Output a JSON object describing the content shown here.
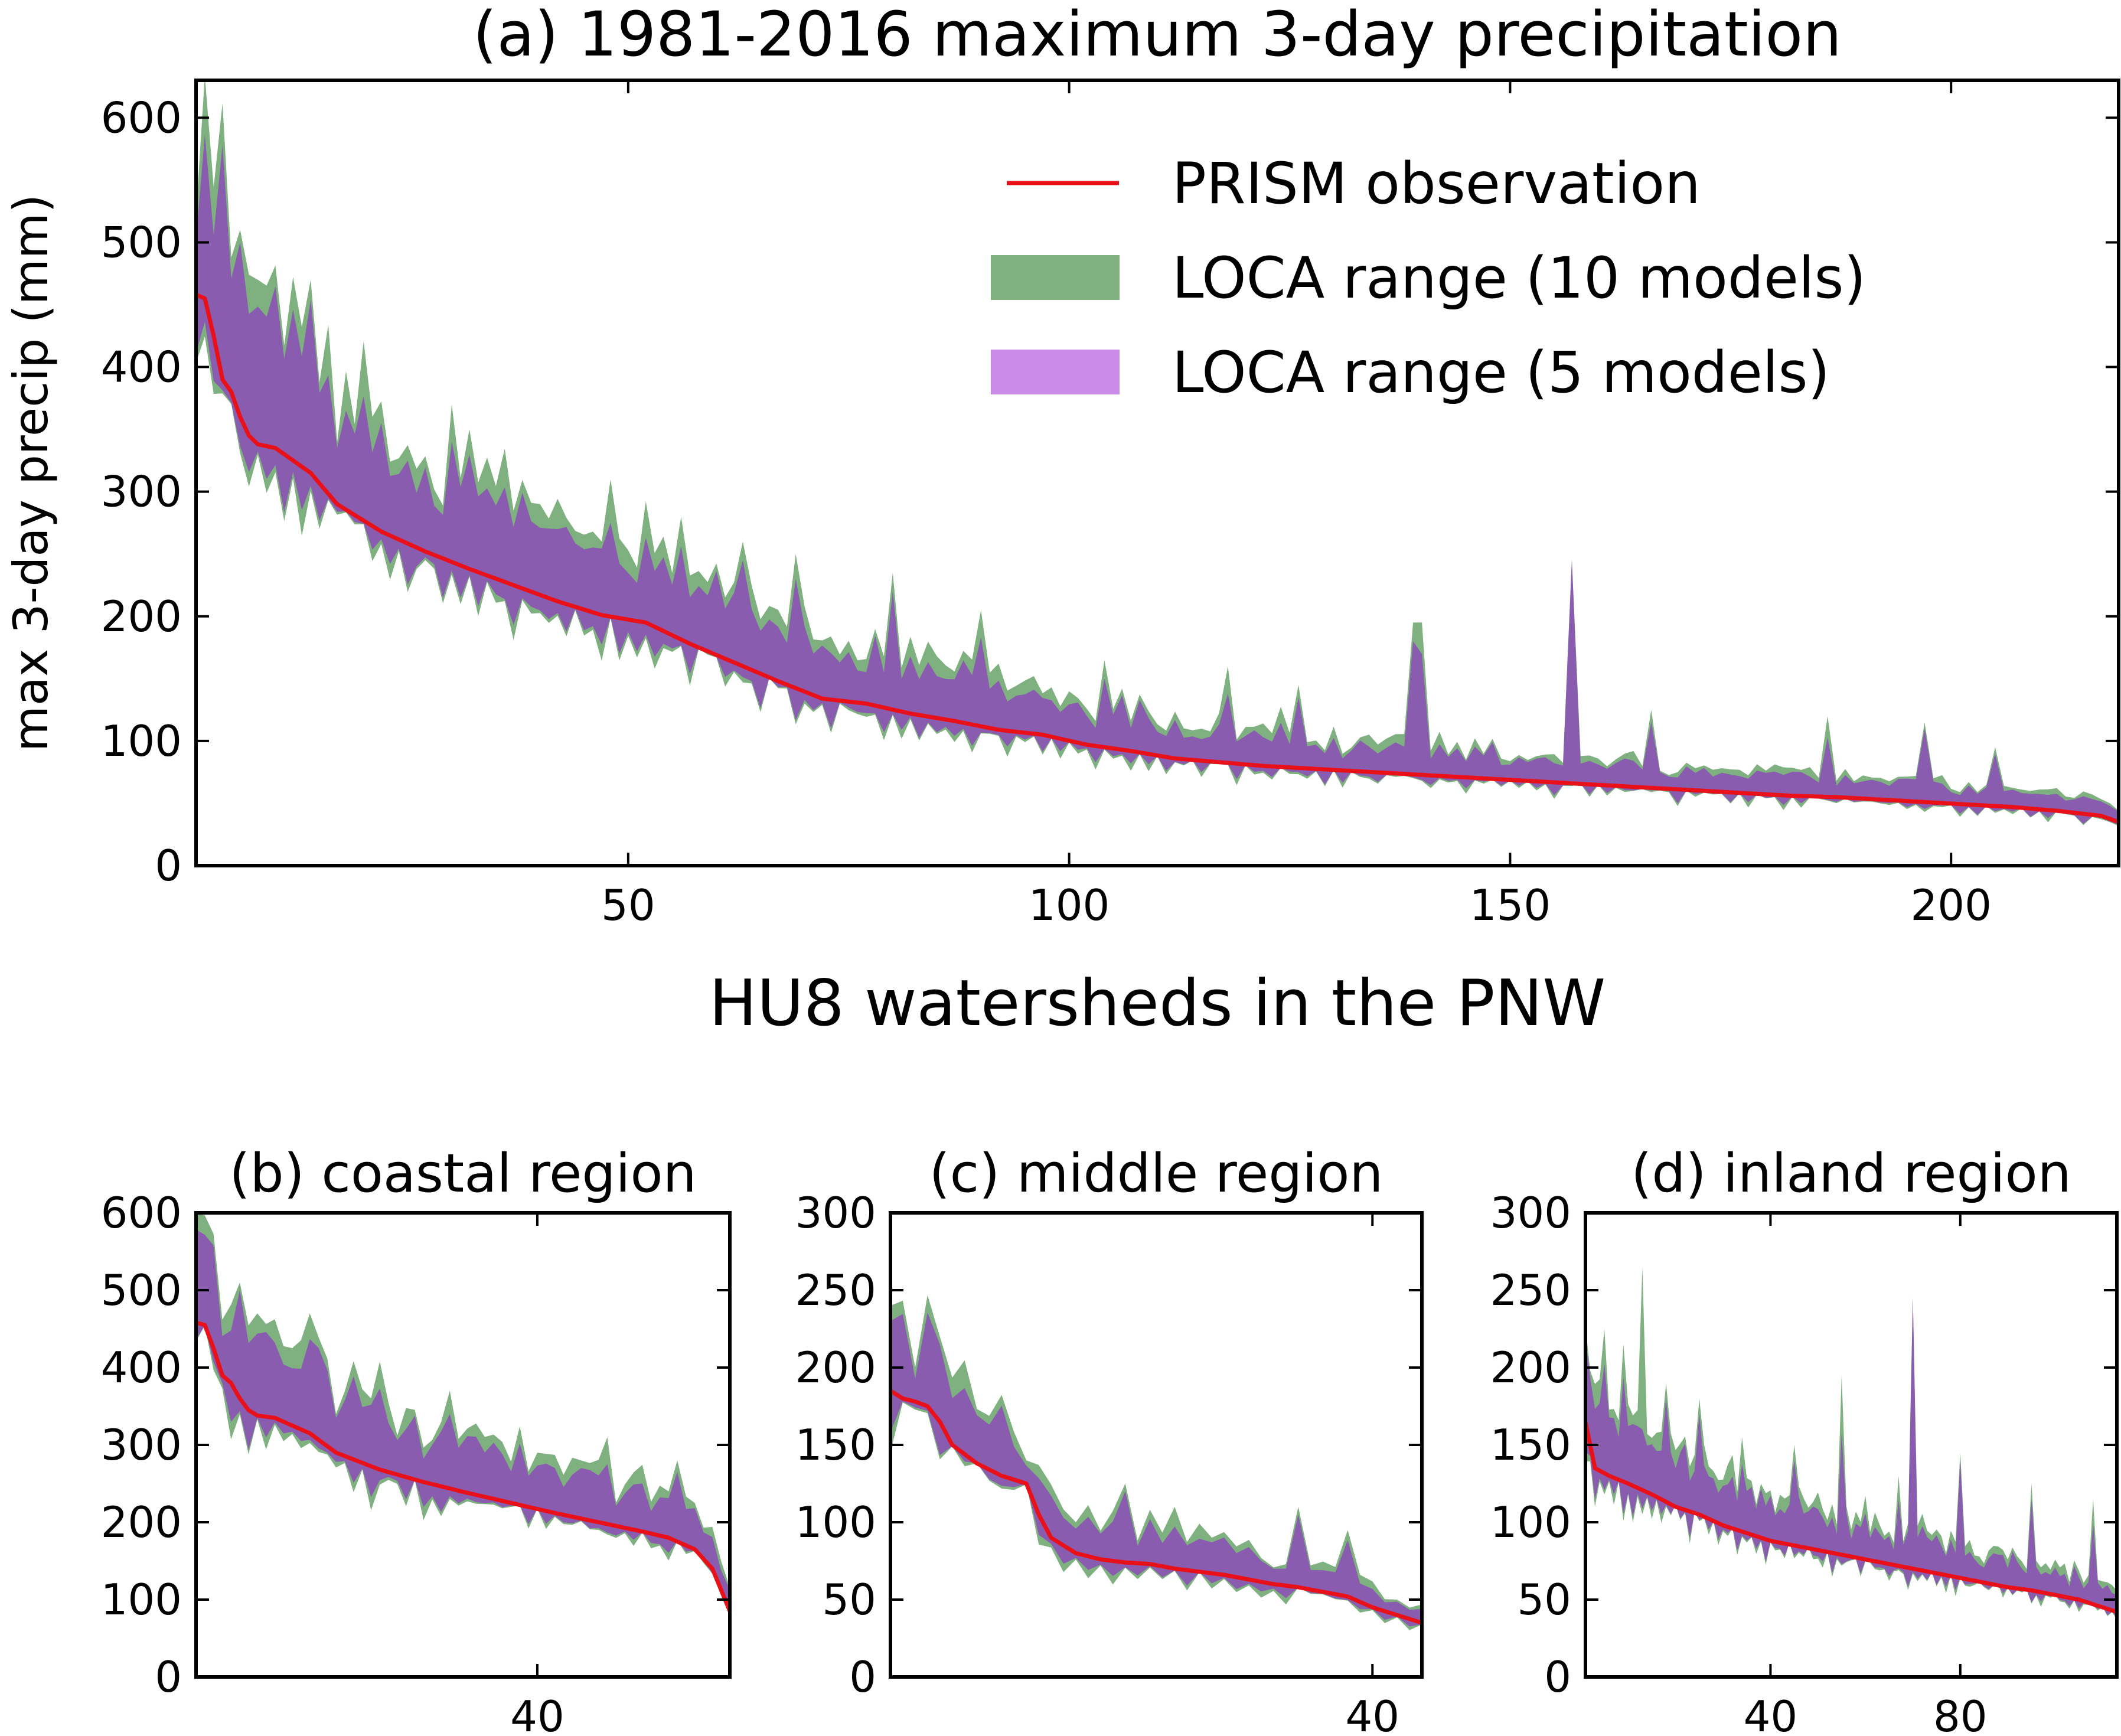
{
  "colors": {
    "observation": "#e8111a",
    "range10": "#7fb07f",
    "range5": "#8a5cb0",
    "range5_legend": "#c98ae8",
    "frame": "#000000"
  },
  "chart_data": [
    {
      "id": "a",
      "type": "area",
      "title": "(a) 1981-2016 maximum 3-day precipitation",
      "xlabel": "HU8 watersheds in the PNW",
      "ylabel": "max 3-day precip (mm)",
      "xlim": [
        1,
        219
      ],
      "ylim": [
        0,
        630
      ],
      "xticks": [
        50,
        100,
        150,
        200
      ],
      "yticks": [
        0,
        100,
        200,
        300,
        400,
        500,
        600
      ],
      "legend_position": "upper-right",
      "legend": [
        {
          "label": "PRISM observation",
          "kind": "line",
          "color": "#e8111a"
        },
        {
          "label": "LOCA range (10 models)",
          "kind": "patch",
          "color": "#7fb07f"
        },
        {
          "label": "LOCA range (5 models)",
          "kind": "patch",
          "color": "#c98ae8"
        }
      ],
      "obs_knots": [
        [
          1,
          458
        ],
        [
          2,
          455
        ],
        [
          3,
          425
        ],
        [
          4,
          390
        ],
        [
          5,
          380
        ],
        [
          6,
          360
        ],
        [
          7,
          345
        ],
        [
          8,
          338
        ],
        [
          10,
          335
        ],
        [
          12,
          325
        ],
        [
          14,
          315
        ],
        [
          17,
          290
        ],
        [
          22,
          268
        ],
        [
          27,
          252
        ],
        [
          32,
          238
        ],
        [
          37,
          225
        ],
        [
          42,
          212
        ],
        [
          47,
          201
        ],
        [
          52,
          195
        ],
        [
          57,
          178
        ],
        [
          62,
          163
        ],
        [
          67,
          148
        ],
        [
          72,
          134
        ],
        [
          77,
          130
        ],
        [
          82,
          122
        ],
        [
          87,
          116
        ],
        [
          92,
          109
        ],
        [
          97,
          105
        ],
        [
          102,
          97
        ],
        [
          107,
          92
        ],
        [
          112,
          86
        ],
        [
          117,
          83
        ],
        [
          122,
          80
        ],
        [
          127,
          78
        ],
        [
          132,
          76
        ],
        [
          137,
          74
        ],
        [
          142,
          72
        ],
        [
          147,
          70
        ],
        [
          152,
          68
        ],
        [
          157,
          66
        ],
        [
          162,
          64
        ],
        [
          167,
          62
        ],
        [
          172,
          60
        ],
        [
          177,
          58
        ],
        [
          182,
          56
        ],
        [
          187,
          55
        ],
        [
          192,
          53
        ],
        [
          197,
          51
        ],
        [
          202,
          49
        ],
        [
          207,
          47
        ],
        [
          212,
          44
        ],
        [
          217,
          40
        ],
        [
          219,
          35
        ]
      ],
      "band10_spikes": [
        [
          6,
          510
        ],
        [
          8,
          470
        ],
        [
          14,
          470
        ],
        [
          17,
          340
        ],
        [
          21,
          360
        ],
        [
          30,
          370
        ],
        [
          40,
          290
        ],
        [
          48,
          310
        ],
        [
          56,
          280
        ],
        [
          63,
          260
        ],
        [
          69,
          250
        ],
        [
          80,
          235
        ],
        [
          90,
          205
        ],
        [
          104,
          165
        ],
        [
          118,
          160
        ],
        [
          126,
          145
        ],
        [
          139,
          195
        ],
        [
          140,
          195
        ],
        [
          157,
          245
        ],
        [
          166,
          125
        ],
        [
          186,
          120
        ],
        [
          197,
          115
        ],
        [
          205,
          95
        ]
      ],
      "band5_spikes": [
        [
          6,
          500
        ],
        [
          17,
          335
        ],
        [
          30,
          340
        ],
        [
          48,
          275
        ],
        [
          63,
          245
        ],
        [
          69,
          230
        ],
        [
          80,
          220
        ],
        [
          104,
          150
        ],
        [
          139,
          180
        ],
        [
          157,
          245
        ],
        [
          166,
          115
        ],
        [
          197,
          110
        ]
      ]
    },
    {
      "id": "b",
      "type": "area",
      "title": "(b) coastal region",
      "xlim": [
        1,
        62
      ],
      "ylim": [
        0,
        600
      ],
      "xticks": [
        40
      ],
      "yticks": [
        0,
        100,
        200,
        300,
        400,
        500,
        600
      ],
      "obs_knots": [
        [
          1,
          458
        ],
        [
          2,
          455
        ],
        [
          3,
          425
        ],
        [
          4,
          390
        ],
        [
          5,
          380
        ],
        [
          6,
          360
        ],
        [
          7,
          345
        ],
        [
          8,
          338
        ],
        [
          10,
          335
        ],
        [
          12,
          325
        ],
        [
          14,
          315
        ],
        [
          17,
          290
        ],
        [
          22,
          268
        ],
        [
          27,
          252
        ],
        [
          32,
          238
        ],
        [
          37,
          225
        ],
        [
          42,
          212
        ],
        [
          47,
          200
        ],
        [
          52,
          188
        ],
        [
          55,
          180
        ],
        [
          58,
          165
        ],
        [
          60,
          140
        ],
        [
          62,
          85
        ]
      ],
      "band10_spikes": [
        [
          6,
          510
        ],
        [
          8,
          470
        ],
        [
          14,
          470
        ],
        [
          17,
          340
        ],
        [
          21,
          360
        ],
        [
          30,
          370
        ],
        [
          40,
          290
        ],
        [
          48,
          310
        ],
        [
          56,
          280
        ],
        [
          61,
          150
        ]
      ],
      "band5_spikes": [
        [
          6,
          500
        ],
        [
          17,
          335
        ],
        [
          30,
          340
        ],
        [
          48,
          275
        ],
        [
          56,
          265
        ]
      ]
    },
    {
      "id": "c",
      "type": "area",
      "title": "(c) middle region",
      "xlim": [
        1,
        44
      ],
      "ylim": [
        0,
        300
      ],
      "xticks": [
        40
      ],
      "yticks": [
        0,
        50,
        100,
        150,
        200,
        250,
        300
      ],
      "obs_knots": [
        [
          1,
          185
        ],
        [
          2,
          180
        ],
        [
          3,
          178
        ],
        [
          4,
          175
        ],
        [
          5,
          165
        ],
        [
          6,
          150
        ],
        [
          8,
          138
        ],
        [
          10,
          130
        ],
        [
          12,
          125
        ],
        [
          13,
          105
        ],
        [
          14,
          90
        ],
        [
          16,
          80
        ],
        [
          18,
          76
        ],
        [
          20,
          74
        ],
        [
          22,
          73
        ],
        [
          24,
          70
        ],
        [
          26,
          68
        ],
        [
          28,
          66
        ],
        [
          30,
          63
        ],
        [
          32,
          60
        ],
        [
          34,
          58
        ],
        [
          36,
          55
        ],
        [
          38,
          52
        ],
        [
          40,
          45
        ],
        [
          42,
          40
        ],
        [
          44,
          35
        ]
      ],
      "band10_spikes": [
        [
          1,
          240
        ],
        [
          3,
          200
        ],
        [
          5,
          220
        ],
        [
          12,
          140
        ],
        [
          16,
          100
        ],
        [
          20,
          125
        ],
        [
          24,
          110
        ],
        [
          34,
          110
        ],
        [
          38,
          95
        ],
        [
          42,
          50
        ]
      ],
      "band5_spikes": [
        [
          1,
          230
        ],
        [
          5,
          215
        ],
        [
          20,
          120
        ],
        [
          34,
          105
        ]
      ]
    },
    {
      "id": "d",
      "type": "area",
      "title": "(d) inland region",
      "xlim": [
        1,
        113
      ],
      "ylim": [
        0,
        300
      ],
      "xticks": [
        40,
        80
      ],
      "yticks": [
        0,
        50,
        100,
        150,
        200,
        250,
        300
      ],
      "obs_knots": [
        [
          1,
          165
        ],
        [
          3,
          135
        ],
        [
          6,
          130
        ],
        [
          10,
          125
        ],
        [
          15,
          118
        ],
        [
          20,
          110
        ],
        [
          25,
          105
        ],
        [
          30,
          98
        ],
        [
          35,
          93
        ],
        [
          40,
          88
        ],
        [
          45,
          85
        ],
        [
          50,
          82
        ],
        [
          55,
          79
        ],
        [
          60,
          76
        ],
        [
          65,
          73
        ],
        [
          70,
          70
        ],
        [
          75,
          67
        ],
        [
          80,
          64
        ],
        [
          85,
          61
        ],
        [
          90,
          58
        ],
        [
          95,
          56
        ],
        [
          100,
          53
        ],
        [
          105,
          50
        ],
        [
          110,
          45
        ],
        [
          113,
          42
        ]
      ],
      "band10_spikes": [
        [
          5,
          225
        ],
        [
          9,
          215
        ],
        [
          13,
          265
        ],
        [
          18,
          190
        ],
        [
          25,
          180
        ],
        [
          34,
          155
        ],
        [
          45,
          150
        ],
        [
          55,
          195
        ],
        [
          67,
          130
        ],
        [
          70,
          245
        ],
        [
          80,
          145
        ],
        [
          95,
          125
        ],
        [
          108,
          115
        ]
      ],
      "band5_spikes": [
        [
          13,
          160
        ],
        [
          18,
          180
        ],
        [
          25,
          170
        ],
        [
          45,
          140
        ],
        [
          70,
          245
        ],
        [
          80,
          140
        ],
        [
          95,
          115
        ]
      ]
    }
  ]
}
